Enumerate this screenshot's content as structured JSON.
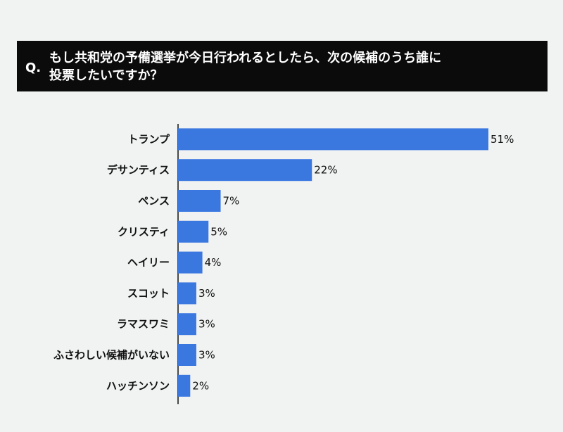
{
  "question": {
    "prefix": "Q.",
    "line1": "もし共和党の予備選挙が今日行われるとしたら、次の候補のうち誰に",
    "line2": "投票したいですか？"
  },
  "colors": {
    "bar": "#3a78e0",
    "axis": "#111111",
    "banner": "#0b0b0b"
  },
  "chart_data": {
    "type": "bar",
    "orientation": "horizontal",
    "categories": [
      "トランプ",
      "デサンティス",
      "ペンス",
      "クリスティ",
      "ヘイリー",
      "スコット",
      "ラマスワミ",
      "ふさわしい候補がいない",
      "ハッチンソン"
    ],
    "values": [
      51,
      22,
      7,
      5,
      4,
      3,
      3,
      3,
      2
    ],
    "value_labels": [
      "51%",
      "22%",
      "7%",
      "5%",
      "4%",
      "3%",
      "3%",
      "3%",
      "2%"
    ],
    "unit": "%",
    "xlim": [
      0,
      51
    ],
    "grid": false,
    "legend": "none"
  }
}
